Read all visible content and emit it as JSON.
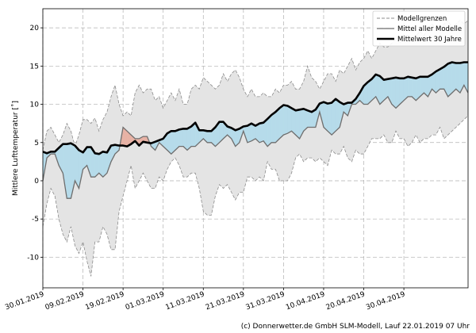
{
  "chart_data": {
    "type": "line",
    "ylabel": "Mittlere Lufttemperatur [˚]",
    "ylim": [
      -14,
      22.5
    ],
    "yticks": [
      -10,
      -5,
      0,
      5,
      10,
      15,
      20
    ],
    "xlim": [
      0,
      106
    ],
    "xticks": [
      {
        "day": 0,
        "label": "30.01.2019"
      },
      {
        "day": 10,
        "label": "09.02.2019"
      },
      {
        "day": 20,
        "label": "19.02.2019"
      },
      {
        "day": 30,
        "label": "01.03.2019"
      },
      {
        "day": 40,
        "label": "11.03.2019"
      },
      {
        "day": 50,
        "label": "21.03.2019"
      },
      {
        "day": 60,
        "label": "31.03.2019"
      },
      {
        "day": 70,
        "label": "10.04.2019"
      },
      {
        "day": 80,
        "label": "20.04.2019"
      },
      {
        "day": 90,
        "label": "30.04.2019"
      }
    ],
    "grid": true,
    "legend_position": "top-right",
    "x": [
      0,
      1,
      2,
      3,
      4,
      5,
      6,
      7,
      8,
      9,
      10,
      11,
      12,
      13,
      14,
      15,
      16,
      17,
      18,
      19,
      20,
      21,
      22,
      23,
      24,
      25,
      26,
      27,
      28,
      29,
      30,
      31,
      32,
      33,
      34,
      35,
      36,
      37,
      38,
      39,
      40,
      41,
      42,
      43,
      44,
      45,
      46,
      47,
      48,
      49,
      50,
      51,
      52,
      53,
      54,
      55,
      56,
      57,
      58,
      59,
      60,
      61,
      62,
      63,
      64,
      65,
      66,
      67,
      68,
      69,
      70,
      71,
      72,
      73,
      74,
      75,
      76,
      77,
      78,
      79,
      80,
      81,
      82,
      83,
      84,
      85,
      86,
      87,
      88,
      89,
      90,
      91,
      92,
      93,
      94,
      95,
      96,
      97,
      98,
      99,
      100,
      101,
      102,
      103,
      104,
      105,
      106
    ],
    "series": [
      {
        "name": "Modellgrenzen",
        "role": "upper",
        "style": "dashed",
        "values": [
          4,
          6.5,
          7,
          6,
          5,
          6,
          7.5,
          6.5,
          4.5,
          6,
          8,
          8,
          7.5,
          8.2,
          6.5,
          8,
          9,
          11,
          12.5,
          10,
          8.5,
          9,
          8.5,
          11.5,
          12.5,
          11.5,
          12,
          12,
          10.5,
          11,
          9.5,
          10.5,
          11.5,
          10.5,
          12,
          10,
          10,
          12,
          12.5,
          12,
          13.5,
          13,
          12.5,
          12,
          12.5,
          14,
          13,
          14,
          14.5,
          13.5,
          12,
          11,
          12,
          11,
          11,
          11.5,
          11,
          11,
          12,
          11.5,
          12.5,
          12.5,
          13,
          12,
          12,
          13,
          15,
          13.5,
          13,
          12,
          13,
          14,
          14,
          13,
          14.5,
          14,
          15,
          16,
          14.5,
          15.5,
          16,
          17,
          16,
          17,
          18,
          17.5,
          17.5,
          18,
          18.5,
          18,
          19,
          19,
          18.5,
          19,
          19.5,
          19,
          20,
          20.5,
          20,
          20,
          20.5,
          21,
          20,
          20.5,
          21,
          20.5,
          21
        ]
      },
      {
        "name": "Modellgrenzen",
        "role": "lower",
        "style": "dashed",
        "values": [
          -6,
          -3,
          -1,
          -2,
          -5,
          -7,
          -8,
          -6,
          -8.5,
          -9.5,
          -8,
          -10.5,
          -12.5,
          -8,
          -8,
          -6,
          -7,
          -9,
          -9,
          -4,
          -2,
          0,
          2,
          -1,
          0,
          1,
          0,
          -1,
          -1,
          0.5,
          0,
          1.5,
          2.5,
          3,
          2,
          0.5,
          0.5,
          1,
          1,
          -1,
          -4,
          -4.5,
          -4.5,
          -2,
          -0.5,
          -1,
          -0.5,
          -1.5,
          -2.5,
          -1.5,
          -1.5,
          0.5,
          0.5,
          0,
          0.5,
          0,
          2.5,
          1.5,
          1.5,
          0,
          0,
          0,
          1,
          3,
          3.5,
          2.5,
          3,
          3,
          2.5,
          3,
          2.5,
          2,
          4,
          3.5,
          3.5,
          4.5,
          3,
          2.5,
          4,
          3.5,
          3.5,
          4.5,
          5.5,
          5.5,
          5.5,
          6,
          5,
          5,
          6.5,
          5.5,
          5.5,
          4.5,
          5,
          6,
          5,
          5.5,
          5.5,
          6,
          6,
          7,
          5.5,
          6,
          6.5,
          7,
          7.5,
          8,
          8.5
        ]
      },
      {
        "name": "Mittel aller Modelle",
        "role": "ensemble-mean",
        "style": "solid",
        "values": [
          0,
          3,
          3.5,
          3.5,
          2,
          1,
          -2.3,
          -2.3,
          0,
          -1,
          1.5,
          2,
          0.5,
          0.5,
          1,
          0.5,
          1,
          2.5,
          3.5,
          4,
          7,
          6.5,
          6,
          5.5,
          5.5,
          5.8,
          5.8,
          4.5,
          4,
          5,
          4.5,
          4,
          3.5,
          4,
          4.5,
          4.5,
          4,
          4.5,
          4.5,
          5,
          5.5,
          5,
          5,
          4.5,
          5,
          5.5,
          6,
          5.5,
          4.5,
          5,
          6.5,
          5,
          5.2,
          5.5,
          5,
          5.2,
          4.5,
          5,
          5,
          5.5,
          6,
          6.2,
          6.5,
          6,
          5.5,
          6.5,
          7,
          7,
          7,
          9,
          7,
          6.5,
          6,
          6.5,
          7,
          9,
          8.5,
          10,
          10,
          10.5,
          10,
          10,
          10.5,
          11,
          10,
          10.5,
          11,
          10,
          9.5,
          10,
          10.5,
          11,
          11,
          10.5,
          11,
          11.5,
          11,
          12,
          11.5,
          12,
          12,
          11,
          11.5,
          12,
          11.5,
          12.5,
          11.5
        ]
      },
      {
        "name": "Mittelwert 30 Jahre",
        "role": "climate-mean",
        "style": "thick",
        "values": [
          3.8,
          3.6,
          3.8,
          3.8,
          4.3,
          4.8,
          4.8,
          4.9,
          4.6,
          4.0,
          3.7,
          4.4,
          4.4,
          3.6,
          3.5,
          3.8,
          3.7,
          4.6,
          4.7,
          4.6,
          4.6,
          4.5,
          4.8,
          5.2,
          4.6,
          5.1,
          5.0,
          4.9,
          5.1,
          5.3,
          5.5,
          6.2,
          6.5,
          6.5,
          6.7,
          6.8,
          6.8,
          7.1,
          7.6,
          6.6,
          6.6,
          6.5,
          6.5,
          7.0,
          7.7,
          7.7,
          7.1,
          6.9,
          6.6,
          6.8,
          7.1,
          7.2,
          7.5,
          7.2,
          7.5,
          7.6,
          8.1,
          8.6,
          9.0,
          9.5,
          9.9,
          9.8,
          9.5,
          9.2,
          9.3,
          9.4,
          9.2,
          9.0,
          9.3,
          10.1,
          10.3,
          10.1,
          10.2,
          10.7,
          10.3,
          10.0,
          10.2,
          10.2,
          10.7,
          11.5,
          12.4,
          12.9,
          13.3,
          13.9,
          13.7,
          13.2,
          13.3,
          13.4,
          13.5,
          13.4,
          13.4,
          13.6,
          13.5,
          13.4,
          13.6,
          13.6,
          13.6,
          13.9,
          14.3,
          14.6,
          14.9,
          15.3,
          15.5,
          15.4,
          15.4,
          15.5,
          15.5
        ]
      }
    ],
    "legend": [
      {
        "label": "Modellgrenzen",
        "style": "dashed"
      },
      {
        "label": "Mittel aller Modelle",
        "style": "solid"
      },
      {
        "label": "Mittelwert 30 Jahre",
        "style": "thick"
      }
    ],
    "colors": {
      "range_fill": "#e4e4e4",
      "range_edge": "#8c8c8c",
      "ensemble_line": "#6e6e6e",
      "climate_line": "#000000",
      "below_fill": "#b6dbea",
      "above_fill": "#e7b2a5",
      "grid": "#b0b0b0"
    }
  },
  "footer": {
    "copyright": "(c) Donnerwetter.de GmbH SLM-Modell, Lauf 22.01.2019 07 Uhr"
  }
}
